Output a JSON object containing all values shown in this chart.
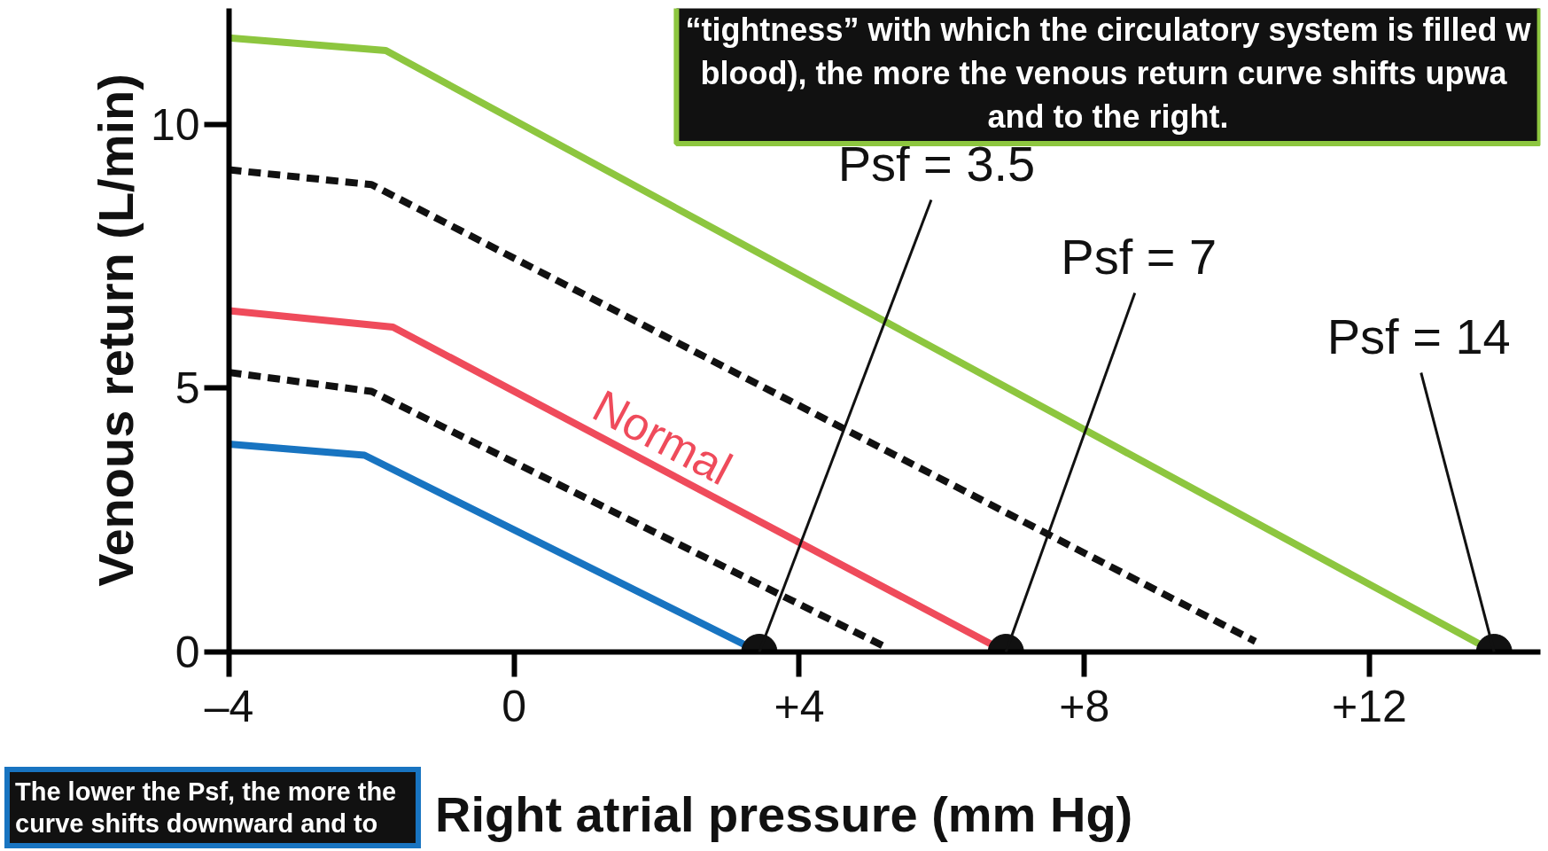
{
  "chart_data": {
    "type": "line",
    "xlabel": "Right atrial pressure (mm Hg)",
    "ylabel": "Venous return (L/min)",
    "xlim": [
      -4,
      14.4
    ],
    "ylim": [
      0,
      12.2
    ],
    "xticks": [
      {
        "value": -4,
        "label": "–4"
      },
      0,
      {
        "value": 4,
        "label": "+4"
      },
      {
        "value": 8,
        "label": "+8"
      },
      {
        "value": 12,
        "label": "+12"
      }
    ],
    "yticks": [
      0,
      5,
      10
    ],
    "grid": false,
    "series": [
      {
        "color": "#8dc63f",
        "x": [
          -4,
          -1.8,
          13.75
        ],
        "values": [
          11.64,
          11.4,
          0
        ]
      },
      {
        "color": "#111111",
        "line_style": "dashed",
        "x": [
          -4,
          -2,
          10.4
        ],
        "values": [
          9.14,
          8.86,
          0.2
        ]
      },
      {
        "name": "Normal",
        "color": "#ef4b5b",
        "x": [
          -4,
          -1.7,
          6.9
        ],
        "values": [
          6.47,
          6.16,
          0
        ]
      },
      {
        "color": "#111111",
        "line_style": "dashed",
        "x": [
          -4,
          -2,
          5.2
        ],
        "values": [
          5.3,
          4.94,
          0.1
        ]
      },
      {
        "color": "#1874c1",
        "x": [
          -4,
          -2.1,
          3.44
        ],
        "values": [
          3.94,
          3.73,
          0
        ]
      },
      {
        "type": "scatter",
        "color": "#111111",
        "marker": "circle",
        "x": [
          3.44,
          6.9,
          13.75
        ],
        "values": [
          0,
          0,
          0
        ]
      }
    ],
    "annotations": [
      {
        "text": "Psf = 3.5",
        "x": 3.44,
        "y": 0
      },
      {
        "text": "Psf = 7",
        "x": 6.9,
        "y": 0
      },
      {
        "text": "Psf = 14",
        "x": 13.75,
        "y": 0
      },
      "“tightness” with which the circulatory system is filled w\nblood), the more the venous  return curve shifts upwa\nand to the right.",
      "The lower the Psf, the more the\ncurve shifts downward and to"
    ]
  }
}
